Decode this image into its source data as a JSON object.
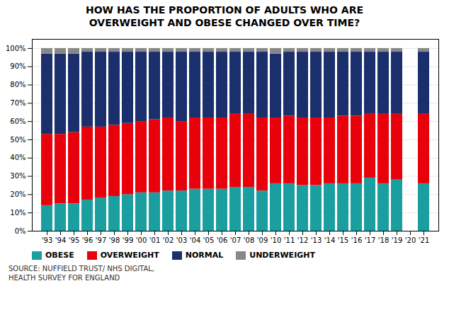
{
  "chart_data": {
    "type": "bar",
    "stacked": true,
    "title": "HOW HAS THE PROPORTION OF ADULTS WHO ARE\nOVERWEIGHT AND OBESE CHANGED OVER TIME?",
    "caption": "SOURCE: NUFFIELD TRUST/ NHS DIGITAL,\nHEALTH SURVEY FOR ENGLAND",
    "categories": [
      "'93",
      "'94",
      "'95",
      "'96",
      "'97",
      "'98",
      "'99",
      "'00",
      "'01",
      "'02",
      "'03",
      "'04",
      "'05",
      "'06",
      "'07",
      "'08",
      "'09",
      "'10",
      "'11",
      "'12",
      "'13",
      "'14",
      "'15",
      "'16",
      "'17",
      "'18",
      "'19",
      "'20",
      "'21"
    ],
    "series": [
      {
        "name": "OBESE",
        "color": "#1b9ea0",
        "values": [
          14,
          15,
          15,
          17,
          18,
          19,
          20,
          21,
          21,
          22,
          22,
          23,
          23,
          23,
          24,
          24,
          22,
          26,
          26,
          25,
          25,
          26,
          26,
          26,
          29,
          26,
          28,
          0,
          26
        ]
      },
      {
        "name": "OVERWEIGHT",
        "color": "#e8000b",
        "values": [
          39,
          38,
          39,
          40,
          39,
          39,
          39,
          39,
          40,
          40,
          38,
          39,
          39,
          39,
          40,
          40,
          40,
          36,
          37,
          37,
          37,
          36,
          37,
          37,
          35,
          38,
          36,
          0,
          38
        ]
      },
      {
        "name": "NORMAL",
        "color": "#1a2f6b",
        "values": [
          44,
          44,
          43,
          41,
          41,
          40,
          39,
          38,
          37,
          36,
          38,
          36,
          36,
          36,
          34,
          34,
          36,
          35,
          35,
          36,
          36,
          36,
          35,
          35,
          34,
          34,
          34,
          0,
          34
        ]
      },
      {
        "name": "UNDERWEIGHT",
        "color": "#888888",
        "values": [
          3,
          3,
          3,
          2,
          2,
          2,
          2,
          2,
          2,
          2,
          2,
          2,
          2,
          2,
          2,
          2,
          2,
          3,
          2,
          2,
          2,
          2,
          2,
          2,
          2,
          2,
          2,
          0,
          2
        ]
      }
    ],
    "ylim": [
      0,
      105
    ],
    "yticks": [
      {
        "value": 0,
        "label": "0%"
      },
      {
        "value": 10,
        "label": "10%"
      },
      {
        "value": 20,
        "label": "20%"
      },
      {
        "value": 30,
        "label": "30%"
      },
      {
        "value": 40,
        "label": "40%"
      },
      {
        "value": 50,
        "label": "50%"
      },
      {
        "value": 60,
        "label": "60%"
      },
      {
        "value": 70,
        "label": "70%"
      },
      {
        "value": 80,
        "label": "80%"
      },
      {
        "value": 90,
        "label": "90%"
      },
      {
        "value": 100,
        "label": "100%"
      }
    ],
    "grid": true,
    "legend": "bottom"
  }
}
